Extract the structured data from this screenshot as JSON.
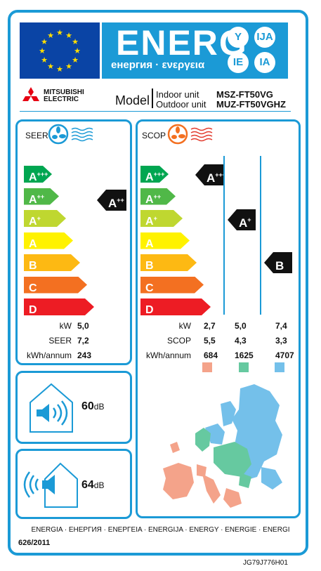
{
  "header": {
    "energ_title": "ENERG",
    "energ_subtitle": "енергия · ενεργεια",
    "lang_codes": [
      "Y",
      "IJA",
      "IE",
      "IA"
    ]
  },
  "brand": {
    "line1": "MITSUBISHI",
    "line2": "ELECTRIC"
  },
  "model": {
    "label": "Model",
    "indoor_label": "Indoor unit",
    "outdoor_label": "Outdoor unit",
    "indoor_code": "MSZ-FT50VG",
    "outdoor_code": "MUZ-FT50VGHZ"
  },
  "seer": {
    "label": "SEER",
    "class_main": "A",
    "class_sup": "++",
    "metrics": [
      {
        "label": "kW",
        "value": "5,0"
      },
      {
        "label": "SEER",
        "value": "7,2"
      },
      {
        "label": "kWh/annum",
        "value": "243"
      }
    ]
  },
  "scop": {
    "label": "SCOP",
    "classes": [
      {
        "main": "A",
        "sup": "+++"
      },
      {
        "main": "A",
        "sup": "+"
      },
      {
        "main": "B",
        "sup": ""
      }
    ],
    "metric_labels": [
      "kW",
      "SCOP",
      "kWh/annum"
    ],
    "columns": [
      {
        "values": [
          "2,7",
          "5,5",
          "684"
        ],
        "color": "#f4a38a"
      },
      {
        "values": [
          "5,0",
          "4,3",
          "1625"
        ],
        "color": "#66c9a0"
      },
      {
        "values": [
          "7,4",
          "3,3",
          "4707"
        ],
        "color": "#74c0ea"
      }
    ]
  },
  "scale": [
    {
      "main": "A",
      "sup": "+++",
      "color": "#00a651"
    },
    {
      "main": "A",
      "sup": "++",
      "color": "#50b848"
    },
    {
      "main": "A",
      "sup": "+",
      "color": "#bfd730"
    },
    {
      "main": "A",
      "sup": "",
      "color": "#fff200"
    },
    {
      "main": "B",
      "sup": "",
      "color": "#fdb913"
    },
    {
      "main": "C",
      "sup": "",
      "color": "#f37021"
    },
    {
      "main": "D",
      "sup": "",
      "color": "#ed1c24"
    }
  ],
  "noise": {
    "indoor_value": "60",
    "outdoor_value": "64",
    "unit": "dB"
  },
  "footer": {
    "energy_line": "ENERGIA · ЕНЕРГИЯ · ΕΝΕΡΓΕΙΑ · ENERGIJA · ENERGY · ENERGIE · ENERGI",
    "regulation": "626/2011",
    "doc_code": "JG79J776H01"
  }
}
